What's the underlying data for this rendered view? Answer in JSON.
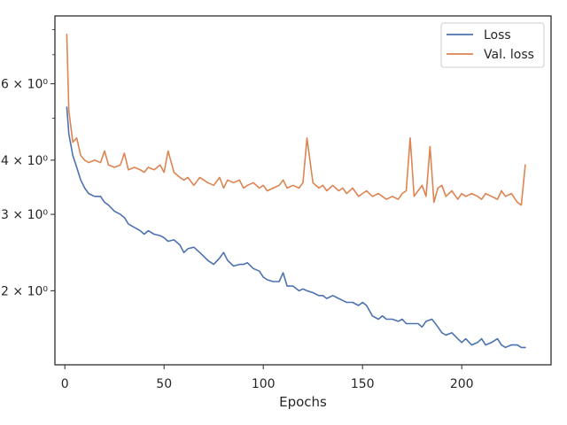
{
  "chart_data": {
    "type": "line",
    "title": "",
    "xlabel": "Epochs",
    "ylabel": "",
    "y_scale": "log",
    "xlim": [
      -5,
      245
    ],
    "ylim": [
      1.35,
      8.6
    ],
    "grid": false,
    "legend_position": "top-right",
    "x_ticks": [
      0,
      50,
      100,
      150,
      200
    ],
    "x_tick_labels": [
      "0",
      "50",
      "100",
      "150",
      "200"
    ],
    "y_ticks": [
      2,
      3,
      4,
      6
    ],
    "y_tick_labels": [
      "2 × 10⁰",
      "3 × 10⁰",
      "4 × 10⁰",
      "6 × 10⁰"
    ],
    "series": [
      {
        "name": "Loss",
        "color": "#4c72b0",
        "x": [
          1,
          2,
          4,
          6,
          8,
          10,
          12,
          15,
          18,
          20,
          22,
          25,
          28,
          30,
          32,
          35,
          38,
          40,
          42,
          45,
          48,
          50,
          52,
          55,
          58,
          60,
          62,
          65,
          68,
          70,
          72,
          75,
          78,
          80,
          82,
          85,
          88,
          90,
          92,
          95,
          98,
          100,
          102,
          105,
          108,
          110,
          112,
          115,
          118,
          120,
          122,
          125,
          128,
          130,
          132,
          135,
          138,
          140,
          142,
          145,
          148,
          150,
          152,
          155,
          158,
          160,
          162,
          165,
          168,
          170,
          172,
          175,
          178,
          180,
          182,
          185,
          188,
          190,
          192,
          195,
          198,
          200,
          202,
          205,
          208,
          210,
          212,
          215,
          218,
          220,
          222,
          225,
          228,
          230,
          232
        ],
        "y": [
          5.3,
          4.6,
          4.1,
          3.85,
          3.6,
          3.45,
          3.35,
          3.3,
          3.3,
          3.2,
          3.15,
          3.05,
          3.0,
          2.95,
          2.85,
          2.8,
          2.75,
          2.7,
          2.75,
          2.7,
          2.68,
          2.65,
          2.6,
          2.62,
          2.55,
          2.45,
          2.5,
          2.52,
          2.45,
          2.4,
          2.35,
          2.3,
          2.38,
          2.45,
          2.35,
          2.28,
          2.3,
          2.3,
          2.32,
          2.25,
          2.22,
          2.15,
          2.12,
          2.1,
          2.1,
          2.2,
          2.05,
          2.05,
          2.0,
          2.02,
          2.0,
          1.98,
          1.95,
          1.95,
          1.92,
          1.95,
          1.92,
          1.9,
          1.88,
          1.88,
          1.85,
          1.88,
          1.85,
          1.75,
          1.72,
          1.75,
          1.72,
          1.72,
          1.7,
          1.72,
          1.68,
          1.68,
          1.68,
          1.65,
          1.7,
          1.72,
          1.65,
          1.6,
          1.58,
          1.6,
          1.55,
          1.52,
          1.55,
          1.5,
          1.52,
          1.55,
          1.5,
          1.52,
          1.55,
          1.5,
          1.48,
          1.5,
          1.5,
          1.48,
          1.48
        ]
      },
      {
        "name": "Val. loss",
        "color": "#dd8452",
        "x": [
          1,
          2,
          4,
          6,
          8,
          10,
          12,
          15,
          18,
          20,
          22,
          25,
          28,
          30,
          32,
          35,
          38,
          40,
          42,
          45,
          48,
          50,
          52,
          55,
          58,
          60,
          62,
          65,
          68,
          70,
          72,
          75,
          78,
          80,
          82,
          85,
          88,
          90,
          92,
          95,
          98,
          100,
          102,
          105,
          108,
          110,
          112,
          115,
          118,
          120,
          122,
          125,
          128,
          130,
          132,
          135,
          138,
          140,
          142,
          145,
          148,
          150,
          152,
          155,
          158,
          160,
          162,
          165,
          168,
          170,
          172,
          174,
          176,
          178,
          180,
          182,
          184,
          186,
          188,
          190,
          192,
          195,
          198,
          200,
          202,
          205,
          208,
          210,
          212,
          215,
          218,
          220,
          222,
          225,
          228,
          230,
          232
        ],
        "y": [
          7.8,
          5.2,
          4.4,
          4.5,
          4.1,
          4.0,
          3.95,
          4.0,
          3.95,
          4.2,
          3.9,
          3.85,
          3.9,
          4.15,
          3.8,
          3.85,
          3.8,
          3.75,
          3.85,
          3.8,
          3.9,
          3.75,
          4.2,
          3.75,
          3.65,
          3.6,
          3.65,
          3.5,
          3.65,
          3.6,
          3.55,
          3.5,
          3.65,
          3.45,
          3.6,
          3.55,
          3.6,
          3.45,
          3.5,
          3.55,
          3.45,
          3.5,
          3.4,
          3.45,
          3.5,
          3.6,
          3.45,
          3.5,
          3.45,
          3.55,
          4.5,
          3.55,
          3.45,
          3.5,
          3.4,
          3.5,
          3.4,
          3.45,
          3.35,
          3.45,
          3.3,
          3.35,
          3.4,
          3.3,
          3.35,
          3.3,
          3.25,
          3.3,
          3.25,
          3.35,
          3.4,
          4.5,
          3.3,
          3.4,
          3.5,
          3.3,
          4.3,
          3.2,
          3.45,
          3.5,
          3.3,
          3.4,
          3.25,
          3.35,
          3.3,
          3.35,
          3.3,
          3.25,
          3.35,
          3.3,
          3.25,
          3.4,
          3.3,
          3.35,
          3.2,
          3.15,
          3.9
        ]
      }
    ]
  }
}
